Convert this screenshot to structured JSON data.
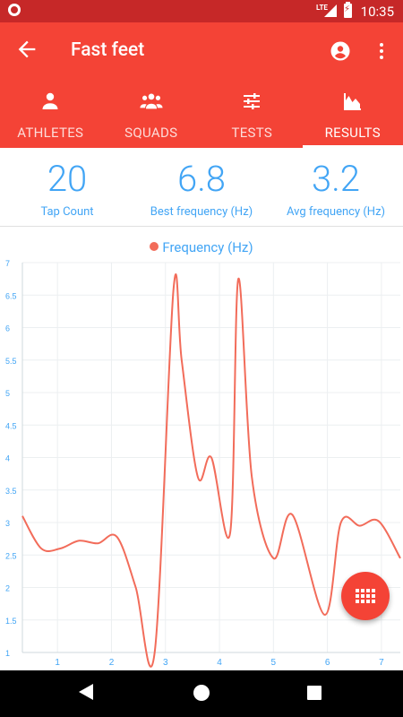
{
  "status_bar": {
    "network": "LTE",
    "time": "10:35"
  },
  "app_bar": {
    "title": "Fast feet"
  },
  "tabs": [
    {
      "label": "ATHLETES",
      "icon": "person-icon"
    },
    {
      "label": "SQUADS",
      "icon": "group-icon"
    },
    {
      "label": "TESTS",
      "icon": "tune-icon"
    },
    {
      "label": "RESULTS",
      "icon": "area-chart-icon",
      "active": true
    }
  ],
  "stats": [
    {
      "value": "20",
      "label": "Tap Count"
    },
    {
      "value": "6.8",
      "label": "Best frequency (Hz)"
    },
    {
      "value": "3.2",
      "label": "Avg frequency (Hz)"
    }
  ],
  "colors": {
    "primary": "#f44336",
    "status_bar": "#c62828",
    "accent": "#42a5f5",
    "series": "#f26c5a"
  },
  "chart_data": {
    "type": "line",
    "legend": [
      "Frequency (Hz)"
    ],
    "legend_position": "top",
    "grid": true,
    "xlim": [
      0.35,
      7.35
    ],
    "ylim": [
      1,
      7
    ],
    "x_ticks": [
      "1",
      "2",
      "3",
      "4",
      "5",
      "6",
      "7"
    ],
    "y_ticks": [
      "1",
      "1.5",
      "2",
      "2.5",
      "3",
      "3.5",
      "4",
      "4.5",
      "5",
      "5.5",
      "6",
      "6.5",
      "7"
    ],
    "series": [
      {
        "name": "Frequency (Hz)",
        "x": [
          0.35,
          0.7,
          1.05,
          1.4,
          1.75,
          2.1,
          2.45,
          2.8,
          3.15,
          3.3,
          3.6,
          3.85,
          4.2,
          4.35,
          4.6,
          5.0,
          5.35,
          5.95,
          6.25,
          6.6,
          6.95,
          7.35
        ],
        "y": [
          3.1,
          2.6,
          2.6,
          2.72,
          2.68,
          2.78,
          2.0,
          1.0,
          6.6,
          5.5,
          3.7,
          4.0,
          2.85,
          6.75,
          3.7,
          2.45,
          3.12,
          1.58,
          3.0,
          2.95,
          3.02,
          2.45
        ]
      }
    ]
  }
}
